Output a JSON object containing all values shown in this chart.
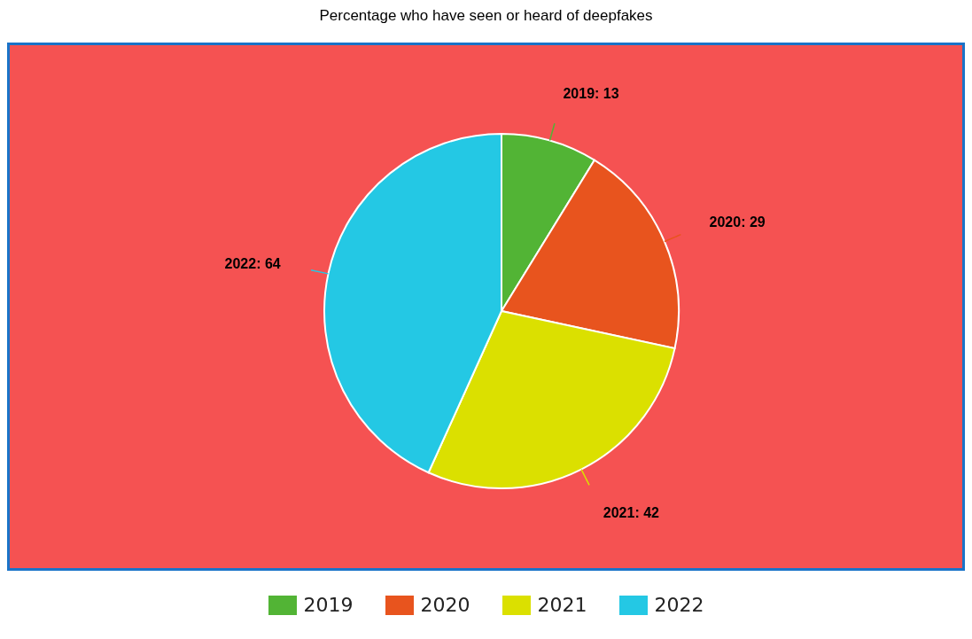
{
  "chart_data": {
    "type": "pie",
    "title": "Percentage who have seen or heard of deepfakes",
    "categories": [
      "2019",
      "2020",
      "2021",
      "2022"
    ],
    "values": [
      13,
      29,
      42,
      64
    ],
    "colors": [
      "#52b435",
      "#e8541e",
      "#dbe000",
      "#24c8e4"
    ],
    "value_labels": [
      "2019: 13",
      "2020: 29",
      "2021: 42",
      "2022: 64"
    ],
    "legend": "bottom"
  }
}
